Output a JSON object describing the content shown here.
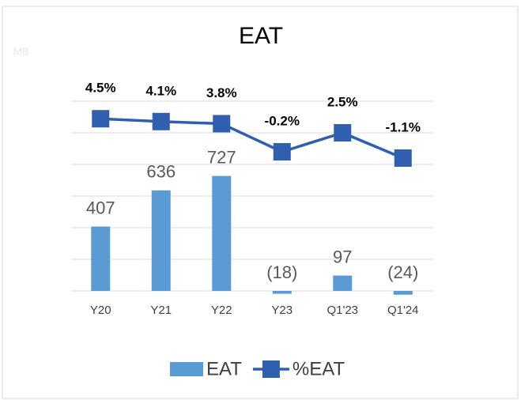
{
  "chart_data": {
    "type": "bar_line",
    "title": "EAT",
    "unit_label": "MB",
    "categories": [
      "Y20",
      "Y21",
      "Y22",
      "Y23",
      "Q1'23",
      "Q1'24"
    ],
    "series": [
      {
        "name": "EAT",
        "type": "bar",
        "color": "#5b9bd5",
        "values": [
          407,
          636,
          727,
          -18,
          97,
          -24
        ],
        "value_labels": [
          "407",
          "636",
          "727",
          "(18)",
          "97",
          "(24)"
        ]
      },
      {
        "name": "%EAT",
        "type": "line",
        "axis": "y2",
        "color": "#2f5fae",
        "values": [
          4.5,
          4.1,
          3.8,
          -0.2,
          2.5,
          -1.1
        ],
        "value_labels": [
          "4.5%",
          "4.1%",
          "3.8%",
          "-0.2%",
          "2.5%",
          "-1.1%"
        ]
      }
    ],
    "ylim": [
      0,
      1200
    ],
    "yticks": [
      0,
      200,
      400,
      600,
      800,
      1000,
      1200
    ],
    "y2lim": [
      -20,
      7
    ],
    "grid": true
  }
}
